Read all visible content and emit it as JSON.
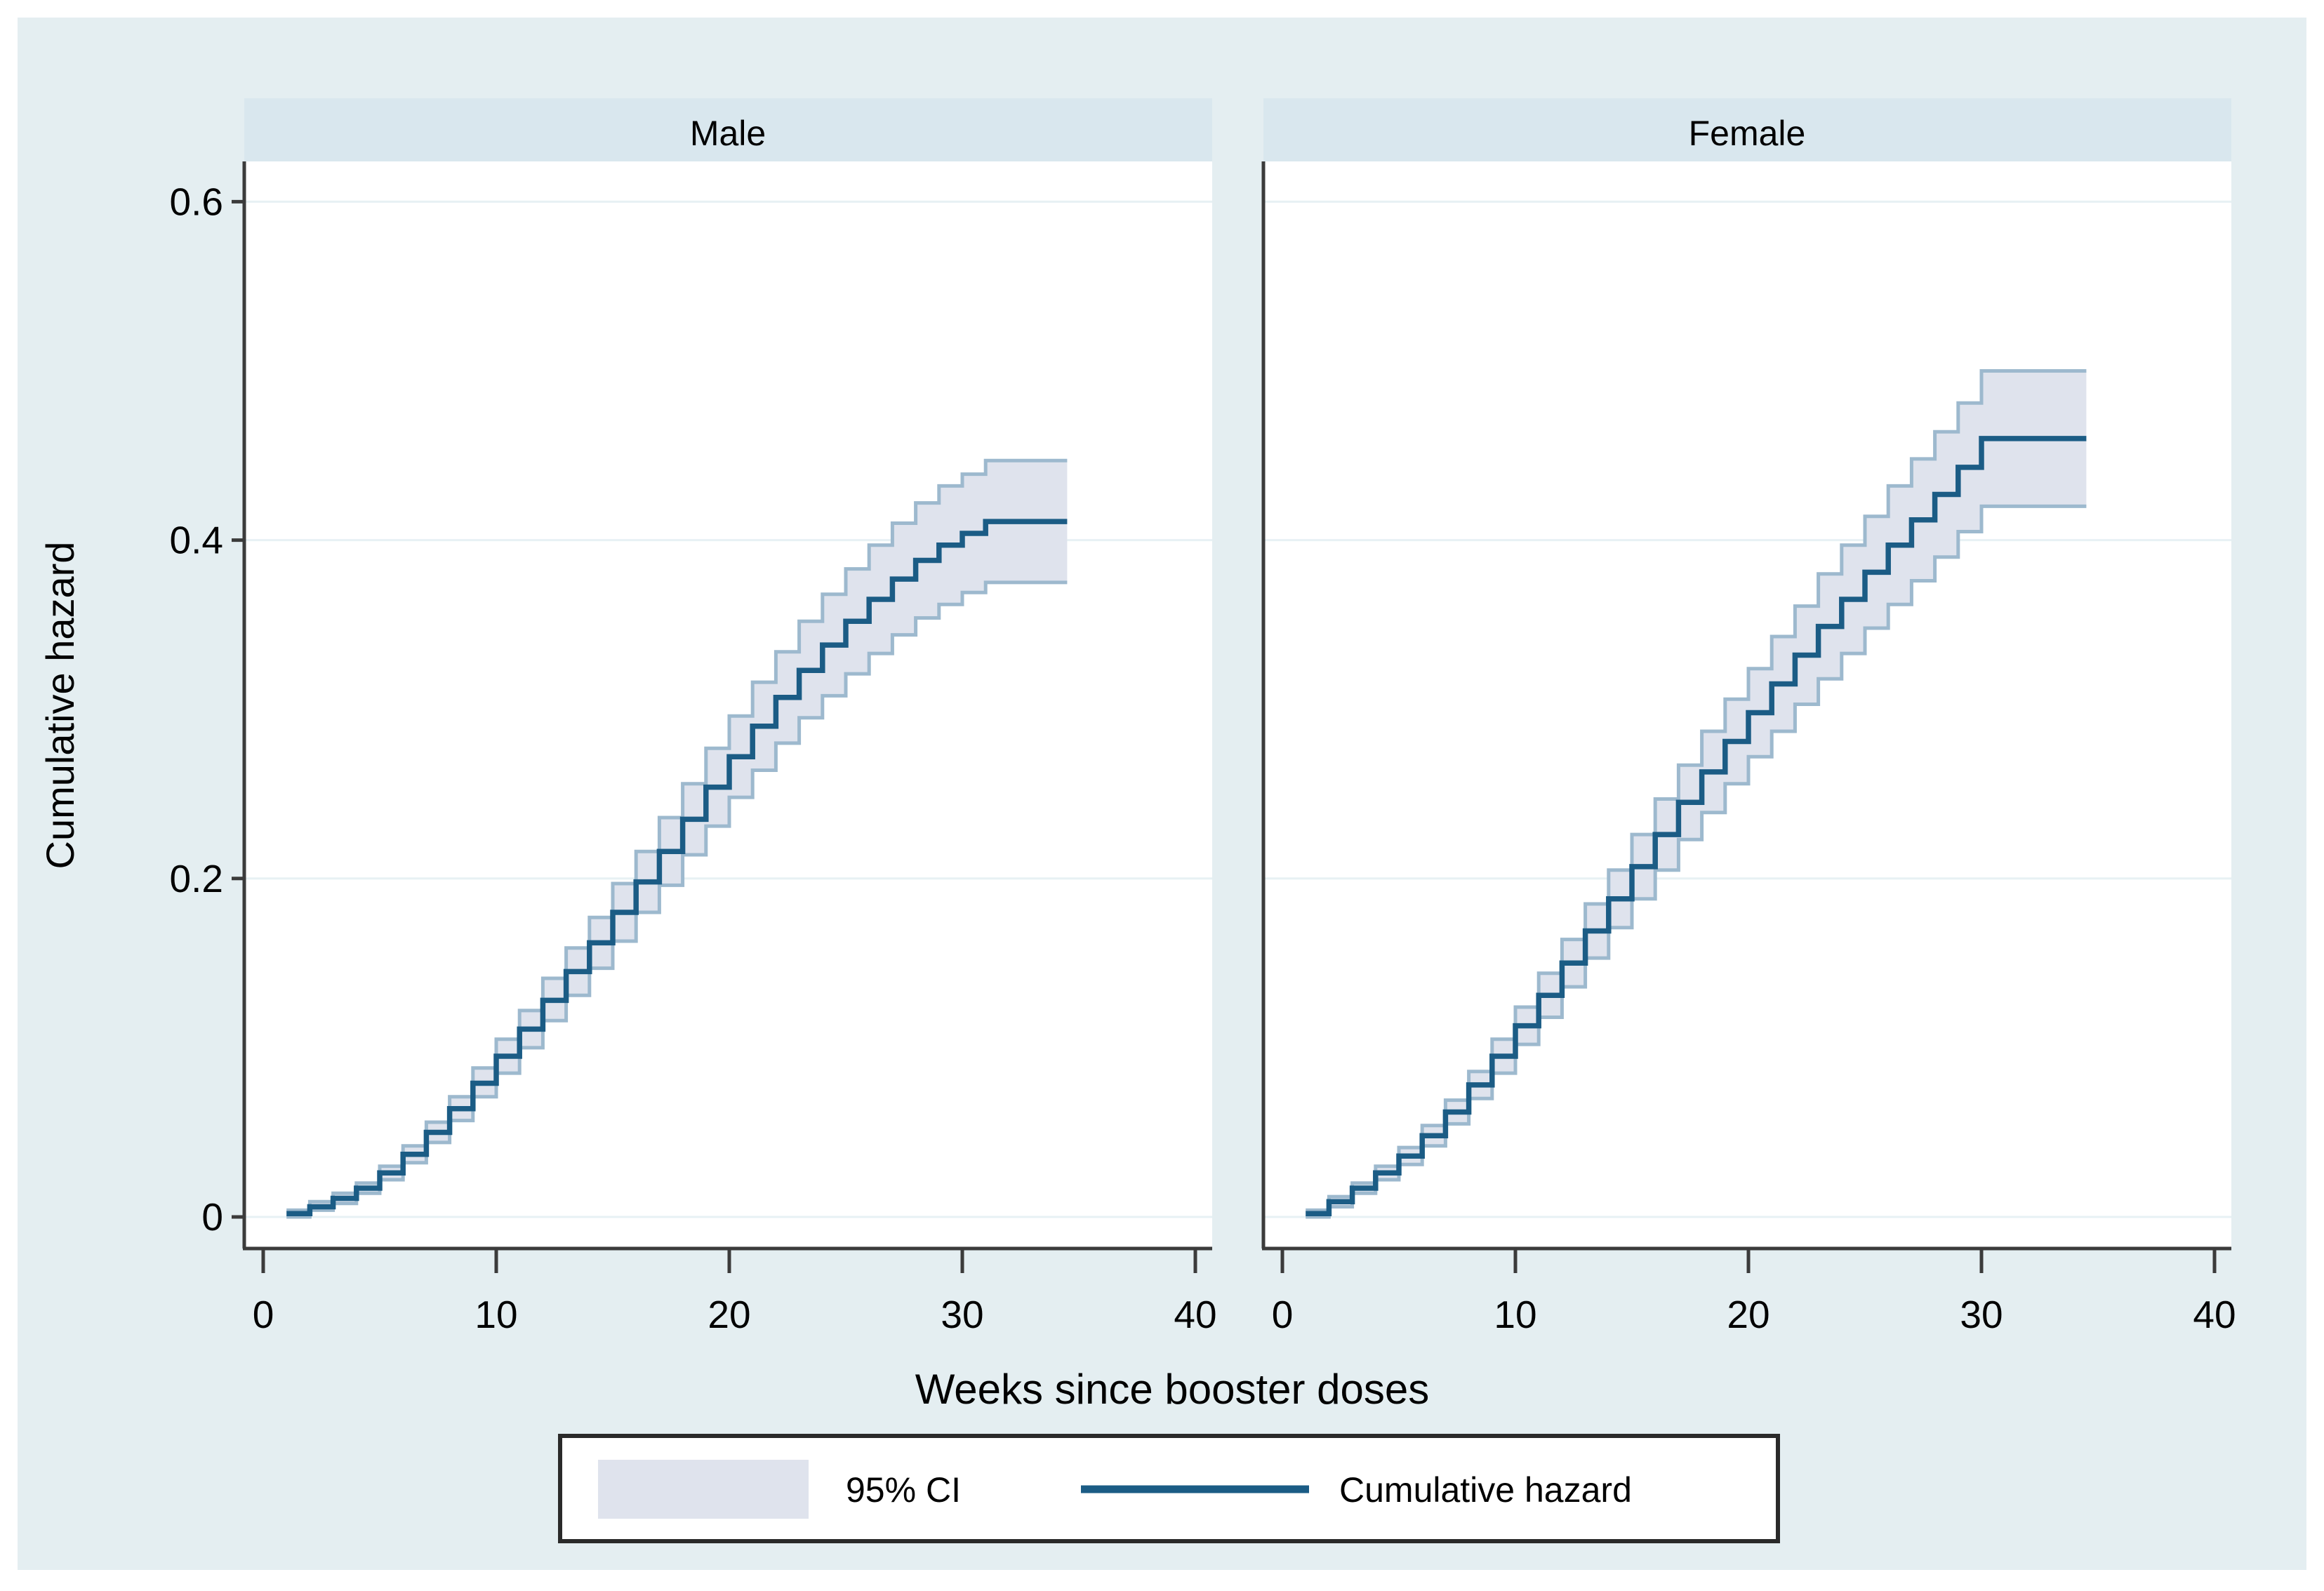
{
  "figure": {
    "y_axis": {
      "title": "Cumulative hazard",
      "tick_labels": [
        "0.6",
        "0.4",
        "0.2",
        "0"
      ],
      "tick_values": [
        0.6,
        0.4,
        0.2,
        0
      ]
    },
    "x_axis": {
      "title": "Weeks since booster doses",
      "tick_labels": [
        "0",
        "10",
        "20",
        "30",
        "40"
      ],
      "tick_values": [
        0,
        10,
        20,
        30,
        40
      ]
    },
    "legend": {
      "ci_label": "95% CI",
      "hazard_label": "Cumulative hazard"
    }
  },
  "colors": {
    "figure_bg": "#e4eef1",
    "header_strip": "#d9e7ee",
    "plot_bg": "#ffffff",
    "gridline": "#e7f1f4",
    "axis": "#3b3b3b",
    "hazard_line": "#1b5c85",
    "ci_edge": "#9db9ce",
    "ci_fill": "#dfe3ed",
    "legend_border": "#2a2a2a",
    "legend_bg": "#ffffff",
    "text": "#000000"
  },
  "chart_data": [
    {
      "type": "line",
      "panel": "Male",
      "xlabel": "Weeks since booster doses",
      "ylabel": "Cumulative hazard",
      "xlim": [
        0,
        40
      ],
      "ylim": [
        0,
        0.6
      ],
      "grid": "horizontal",
      "legend_position": "bottom",
      "step": true,
      "x": [
        1,
        2,
        3,
        4,
        5,
        6,
        7,
        8,
        9,
        10,
        11,
        12,
        13,
        14,
        15,
        16,
        17,
        18,
        19,
        20,
        21,
        22,
        23,
        24,
        25,
        26,
        27,
        28,
        29,
        30,
        31,
        32,
        33,
        34
      ],
      "end_week": 34.5,
      "series": [
        {
          "name": "Cumulative hazard",
          "values": [
            0.002,
            0.006,
            0.011,
            0.017,
            0.026,
            0.037,
            0.05,
            0.064,
            0.079,
            0.095,
            0.111,
            0.128,
            0.145,
            0.162,
            0.18,
            0.198,
            0.216,
            0.235,
            0.254,
            0.272,
            0.29,
            0.307,
            0.323,
            0.338,
            0.352,
            0.365,
            0.377,
            0.388,
            0.397,
            0.404,
            0.411,
            0.411,
            0.411,
            0.411
          ]
        },
        {
          "name": "95% CI lower",
          "values": [
            0.0,
            0.004,
            0.008,
            0.014,
            0.022,
            0.032,
            0.044,
            0.057,
            0.071,
            0.085,
            0.1,
            0.116,
            0.131,
            0.147,
            0.163,
            0.18,
            0.196,
            0.214,
            0.231,
            0.248,
            0.264,
            0.28,
            0.295,
            0.308,
            0.321,
            0.333,
            0.344,
            0.354,
            0.362,
            0.369,
            0.375,
            0.375,
            0.375,
            0.375
          ]
        },
        {
          "name": "95% CI upper",
          "values": [
            0.004,
            0.009,
            0.014,
            0.02,
            0.03,
            0.042,
            0.056,
            0.071,
            0.088,
            0.105,
            0.122,
            0.141,
            0.159,
            0.177,
            0.197,
            0.216,
            0.236,
            0.256,
            0.277,
            0.296,
            0.316,
            0.334,
            0.352,
            0.368,
            0.383,
            0.397,
            0.41,
            0.422,
            0.432,
            0.439,
            0.447,
            0.447,
            0.447,
            0.447
          ]
        }
      ]
    },
    {
      "type": "line",
      "panel": "Female",
      "xlabel": "Weeks since booster doses",
      "ylabel": "Cumulative hazard",
      "xlim": [
        0,
        40
      ],
      "ylim": [
        0,
        0.6
      ],
      "grid": "horizontal",
      "legend_position": "bottom",
      "step": true,
      "x": [
        1,
        2,
        3,
        4,
        5,
        6,
        7,
        8,
        9,
        10,
        11,
        12,
        13,
        14,
        15,
        16,
        17,
        18,
        19,
        20,
        21,
        22,
        23,
        24,
        25,
        26,
        27,
        28,
        29,
        30,
        31,
        32,
        33,
        34
      ],
      "end_week": 34.5,
      "series": [
        {
          "name": "Cumulative hazard",
          "values": [
            0.002,
            0.009,
            0.017,
            0.026,
            0.036,
            0.048,
            0.062,
            0.078,
            0.095,
            0.113,
            0.131,
            0.15,
            0.169,
            0.188,
            0.207,
            0.226,
            0.245,
            0.263,
            0.281,
            0.298,
            0.315,
            0.332,
            0.349,
            0.365,
            0.381,
            0.397,
            0.412,
            0.427,
            0.443,
            0.46,
            0.46,
            0.46,
            0.46,
            0.46
          ]
        },
        {
          "name": "95% CI lower",
          "values": [
            0.0,
            0.006,
            0.014,
            0.022,
            0.031,
            0.042,
            0.055,
            0.07,
            0.085,
            0.102,
            0.118,
            0.136,
            0.153,
            0.171,
            0.188,
            0.205,
            0.223,
            0.239,
            0.256,
            0.272,
            0.287,
            0.303,
            0.318,
            0.333,
            0.348,
            0.362,
            0.376,
            0.39,
            0.405,
            0.42,
            0.42,
            0.42,
            0.42,
            0.42
          ]
        },
        {
          "name": "95% CI upper",
          "values": [
            0.004,
            0.012,
            0.02,
            0.03,
            0.041,
            0.054,
            0.069,
            0.086,
            0.105,
            0.124,
            0.144,
            0.164,
            0.185,
            0.205,
            0.226,
            0.247,
            0.267,
            0.287,
            0.306,
            0.324,
            0.343,
            0.361,
            0.38,
            0.397,
            0.414,
            0.432,
            0.448,
            0.464,
            0.481,
            0.5,
            0.5,
            0.5,
            0.5,
            0.5
          ]
        }
      ]
    }
  ]
}
